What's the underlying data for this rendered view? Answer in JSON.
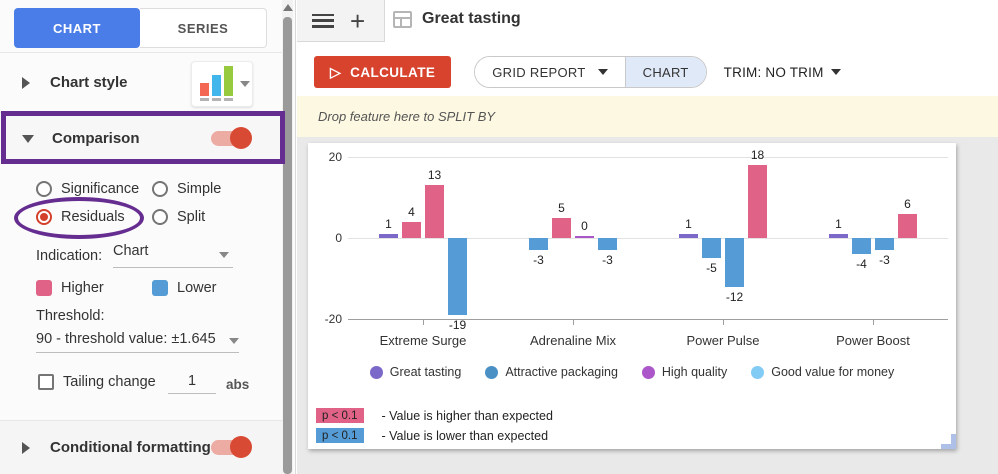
{
  "sidebar": {
    "tabs": [
      {
        "label": "CHART"
      },
      {
        "label": "SERIES"
      }
    ],
    "chart_style": {
      "label": "Chart style"
    },
    "comparison": {
      "label": "Comparison",
      "toggle": "on",
      "options": [
        "Significance",
        "Simple",
        "Residuals",
        "Split"
      ],
      "selected_option": "Residuals",
      "indication_label": "Indication:",
      "indication_value": "Chart",
      "higher_label": "Higher",
      "lower_label": "Lower",
      "threshold_label": "Threshold:",
      "threshold_value": "90 - threshold value: ±1.645",
      "tailing_label": "Tailing change",
      "tailing_value": "1",
      "tailing_unit": "abs",
      "tailing_checked": false
    },
    "conditional_formatting": {
      "label": "Conditional formatting",
      "toggle": "on"
    }
  },
  "topbar": {
    "title": "Great tasting"
  },
  "toolbar": {
    "calculate_label": "CALCULATE",
    "grid_report_label": "GRID REPORT",
    "chart_label": "CHART",
    "trim_label": "TRIM: NO TRIM"
  },
  "split_strip": {
    "text": "Drop feature here to SPLIT BY"
  },
  "colors": {
    "higher": "#e06287",
    "lower": "#559cd6",
    "accent_blue": "#4a7de8",
    "accent_red": "#d8432e",
    "annotation_purple": "#662d91"
  },
  "chart_data": {
    "type": "bar",
    "categories": [
      "Extreme Surge",
      "Adrenaline Mix",
      "Power Pulse",
      "Power Boost"
    ],
    "series": [
      {
        "name": "Great tasting",
        "color": "#7b68c8",
        "values": [
          1,
          -3,
          1,
          1
        ]
      },
      {
        "name": "Attractive packaging",
        "color": "#4a90c4",
        "values": [
          4,
          5,
          -5,
          -4
        ]
      },
      {
        "name": "High quality",
        "color": "#ab57c9",
        "values": [
          13,
          0,
          -12,
          -3
        ]
      },
      {
        "name": "Good value for money",
        "color": "#82cbf5",
        "values": [
          -19,
          -3,
          18,
          6
        ]
      }
    ],
    "significance": [
      [
        "none",
        "higher",
        "higher",
        "lower"
      ],
      [
        "lower",
        "higher",
        "none",
        "lower"
      ],
      [
        "none",
        "lower",
        "lower",
        "higher"
      ],
      [
        "none",
        "lower",
        "lower",
        "higher"
      ]
    ],
    "higher_color": "#e06287",
    "lower_color": "#559cd6",
    "ylim": [
      -20,
      20
    ],
    "yticks": [
      20,
      0,
      -20
    ],
    "grid": true,
    "legend_position": "bottom",
    "sig_legend": [
      {
        "badge": "p < 0.1",
        "text": "- Value is higher than expected",
        "color": "#e06287"
      },
      {
        "badge": "p < 0.1",
        "text": "- Value is lower than expected",
        "color": "#559cd6"
      }
    ]
  }
}
